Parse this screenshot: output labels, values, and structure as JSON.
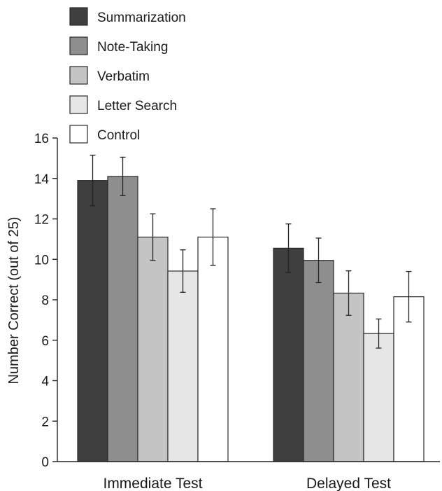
{
  "chart_data": {
    "type": "bar",
    "title": "",
    "xlabel": "",
    "ylabel": "Number Correct (out of 25)",
    "ylim": [
      0,
      16
    ],
    "yticks": [
      0,
      2,
      4,
      6,
      8,
      10,
      12,
      14,
      16
    ],
    "categories": [
      "Immediate Test",
      "Delayed Test"
    ],
    "error_bars": true,
    "grid": false,
    "legend_position": "top-left",
    "series": [
      {
        "name": "Summarization",
        "color": "#3f3f3f",
        "values": [
          13.9,
          10.55
        ],
        "errors": [
          1.25,
          1.2
        ]
      },
      {
        "name": "Note-Taking",
        "color": "#8e8e8e",
        "values": [
          14.1,
          9.95
        ],
        "errors": [
          0.95,
          1.1
        ]
      },
      {
        "name": "Verbatim",
        "color": "#c4c4c4",
        "values": [
          11.1,
          8.33
        ],
        "errors": [
          1.15,
          1.1
        ]
      },
      {
        "name": "Letter Search",
        "color": "#e6e6e6",
        "values": [
          9.42,
          6.33
        ],
        "errors": [
          1.05,
          0.72
        ]
      },
      {
        "name": "Control",
        "color": "#ffffff",
        "values": [
          11.1,
          8.15
        ],
        "errors": [
          1.4,
          1.25
        ]
      }
    ]
  }
}
